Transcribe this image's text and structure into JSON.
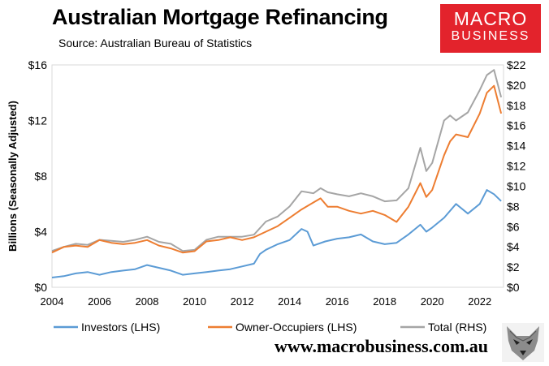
{
  "header": {
    "title": "Australian Mortgage Refinancing",
    "subtitle": "Source: Australian Bureau of Statistics"
  },
  "logo": {
    "line1": "MACRO",
    "line2": "BUSINESS"
  },
  "footer": {
    "url": "www.macrobusiness.com.au",
    "logo_icon": "wolf-icon"
  },
  "chart_data": {
    "type": "line",
    "ylabel": "Billions (Seasonally Adjusted)",
    "x_ticks": [
      "2004",
      "2006",
      "2008",
      "2010",
      "2012",
      "2014",
      "2016",
      "2018",
      "2020",
      "2022"
    ],
    "y_left": {
      "ticks": [
        "$0",
        "$4",
        "$8",
        "$12",
        "$16"
      ],
      "range": [
        0,
        16
      ]
    },
    "y_right": {
      "ticks": [
        "$0",
        "$2",
        "$4",
        "$6",
        "$8",
        "$10",
        "$12",
        "$14",
        "$16",
        "$18",
        "$20",
        "$22"
      ],
      "range": [
        0,
        22
      ]
    },
    "x_range": [
      2004,
      2023
    ],
    "legend_position": "bottom",
    "series": [
      {
        "name": "Investors (LHS)",
        "axis": "left",
        "color": "#5b9bd5",
        "points": [
          [
            2004,
            0.7
          ],
          [
            2004.5,
            0.8
          ],
          [
            2005,
            1.0
          ],
          [
            2005.5,
            1.1
          ],
          [
            2006,
            0.9
          ],
          [
            2006.5,
            1.1
          ],
          [
            2007,
            1.2
          ],
          [
            2007.5,
            1.3
          ],
          [
            2008,
            1.6
          ],
          [
            2008.5,
            1.4
          ],
          [
            2009,
            1.2
          ],
          [
            2009.5,
            0.9
          ],
          [
            2010,
            1.0
          ],
          [
            2010.5,
            1.1
          ],
          [
            2011,
            1.2
          ],
          [
            2011.5,
            1.3
          ],
          [
            2012,
            1.5
          ],
          [
            2012.5,
            1.7
          ],
          [
            2012.75,
            2.4
          ],
          [
            2013,
            2.7
          ],
          [
            2013.5,
            3.1
          ],
          [
            2014,
            3.4
          ],
          [
            2014.5,
            4.2
          ],
          [
            2014.75,
            4.0
          ],
          [
            2015,
            3.0
          ],
          [
            2015.5,
            3.3
          ],
          [
            2016,
            3.5
          ],
          [
            2016.5,
            3.6
          ],
          [
            2017,
            3.8
          ],
          [
            2017.5,
            3.3
          ],
          [
            2018,
            3.1
          ],
          [
            2018.5,
            3.2
          ],
          [
            2019,
            3.8
          ],
          [
            2019.5,
            4.5
          ],
          [
            2019.75,
            4.0
          ],
          [
            2020,
            4.3
          ],
          [
            2020.5,
            5.0
          ],
          [
            2021,
            6.0
          ],
          [
            2021.5,
            5.3
          ],
          [
            2022,
            6.0
          ],
          [
            2022.3,
            7.0
          ],
          [
            2022.6,
            6.7
          ],
          [
            2022.9,
            6.2
          ]
        ]
      },
      {
        "name": "Owner-Occupiers (LHS)",
        "axis": "left",
        "color": "#ed7d31",
        "points": [
          [
            2004,
            2.5
          ],
          [
            2004.5,
            2.9
          ],
          [
            2005,
            3.0
          ],
          [
            2005.5,
            2.9
          ],
          [
            2006,
            3.4
          ],
          [
            2006.5,
            3.2
          ],
          [
            2007,
            3.1
          ],
          [
            2007.5,
            3.2
          ],
          [
            2008,
            3.4
          ],
          [
            2008.5,
            3.0
          ],
          [
            2009,
            2.8
          ],
          [
            2009.5,
            2.5
          ],
          [
            2010,
            2.6
          ],
          [
            2010.5,
            3.3
          ],
          [
            2011,
            3.4
          ],
          [
            2011.5,
            3.6
          ],
          [
            2012,
            3.4
          ],
          [
            2012.5,
            3.6
          ],
          [
            2013,
            4.0
          ],
          [
            2013.5,
            4.4
          ],
          [
            2014,
            5.0
          ],
          [
            2014.5,
            5.6
          ],
          [
            2015,
            6.1
          ],
          [
            2015.3,
            6.4
          ],
          [
            2015.6,
            5.8
          ],
          [
            2016,
            5.8
          ],
          [
            2016.5,
            5.5
          ],
          [
            2017,
            5.3
          ],
          [
            2017.5,
            5.5
          ],
          [
            2018,
            5.2
          ],
          [
            2018.5,
            4.7
          ],
          [
            2019,
            5.8
          ],
          [
            2019.5,
            7.5
          ],
          [
            2019.75,
            6.5
          ],
          [
            2020,
            7.0
          ],
          [
            2020.5,
            9.5
          ],
          [
            2020.75,
            10.5
          ],
          [
            2021,
            11.0
          ],
          [
            2021.5,
            10.8
          ],
          [
            2022,
            12.5
          ],
          [
            2022.3,
            14.0
          ],
          [
            2022.6,
            14.5
          ],
          [
            2022.9,
            12.5
          ]
        ]
      },
      {
        "name": "Total (RHS)",
        "axis": "right",
        "color": "#a5a5a5",
        "points": [
          [
            2004,
            3.6
          ],
          [
            2004.5,
            4.0
          ],
          [
            2005,
            4.3
          ],
          [
            2005.5,
            4.2
          ],
          [
            2006,
            4.7
          ],
          [
            2006.5,
            4.6
          ],
          [
            2007,
            4.5
          ],
          [
            2007.5,
            4.7
          ],
          [
            2008,
            5.0
          ],
          [
            2008.5,
            4.5
          ],
          [
            2009,
            4.3
          ],
          [
            2009.5,
            3.6
          ],
          [
            2010,
            3.7
          ],
          [
            2010.5,
            4.7
          ],
          [
            2011,
            5.0
          ],
          [
            2011.5,
            5.0
          ],
          [
            2012,
            5.0
          ],
          [
            2012.5,
            5.2
          ],
          [
            2013,
            6.5
          ],
          [
            2013.5,
            7.0
          ],
          [
            2014,
            8.0
          ],
          [
            2014.5,
            9.5
          ],
          [
            2015,
            9.3
          ],
          [
            2015.3,
            9.8
          ],
          [
            2015.6,
            9.4
          ],
          [
            2016,
            9.2
          ],
          [
            2016.5,
            9.0
          ],
          [
            2017,
            9.3
          ],
          [
            2017.5,
            9.0
          ],
          [
            2018,
            8.5
          ],
          [
            2018.5,
            8.6
          ],
          [
            2019,
            9.8
          ],
          [
            2019.5,
            13.8
          ],
          [
            2019.75,
            11.5
          ],
          [
            2020,
            12.3
          ],
          [
            2020.5,
            16.5
          ],
          [
            2020.75,
            17.0
          ],
          [
            2021,
            16.5
          ],
          [
            2021.5,
            17.3
          ],
          [
            2022,
            19.5
          ],
          [
            2022.3,
            21.0
          ],
          [
            2022.6,
            21.5
          ],
          [
            2022.9,
            18.8
          ]
        ]
      }
    ]
  }
}
